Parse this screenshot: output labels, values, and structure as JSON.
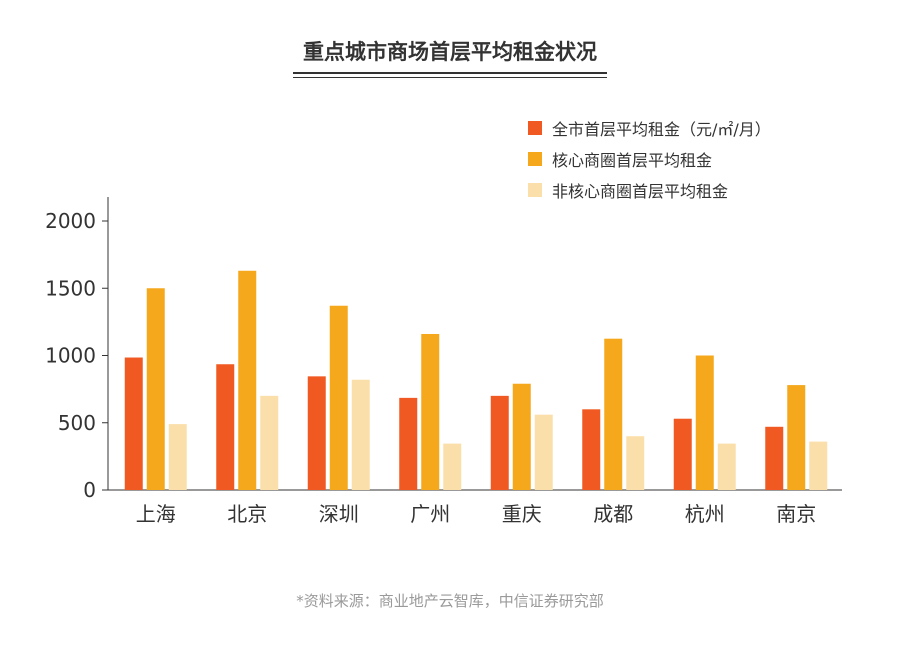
{
  "chart_data": {
    "type": "bar",
    "title": "重点城市商场首层平均租金状况",
    "categories": [
      "上海",
      "北京",
      "深圳",
      "广州",
      "重庆",
      "成都",
      "杭州",
      "南京"
    ],
    "series": [
      {
        "name": "全市首层平均租金（元/㎡/月）",
        "color": "#f05a22",
        "values": [
          985,
          935,
          845,
          685,
          700,
          600,
          530,
          470
        ]
      },
      {
        "name": "核心商圈首层平均租金",
        "color": "#f6a81d",
        "values": [
          1500,
          1630,
          1370,
          1160,
          790,
          1125,
          1000,
          780
        ]
      },
      {
        "name": "非核心商圈首层平均租金",
        "color": "#fbdfaa",
        "values": [
          490,
          700,
          820,
          345,
          560,
          400,
          345,
          360
        ]
      }
    ],
    "ylim": [
      0,
      2000
    ],
    "yticks": [
      0,
      500,
      1000,
      1500,
      2000
    ],
    "legend_position": "top-right",
    "grid": false
  },
  "source": "*资料来源：商业地产云智库，中信证券研究部"
}
